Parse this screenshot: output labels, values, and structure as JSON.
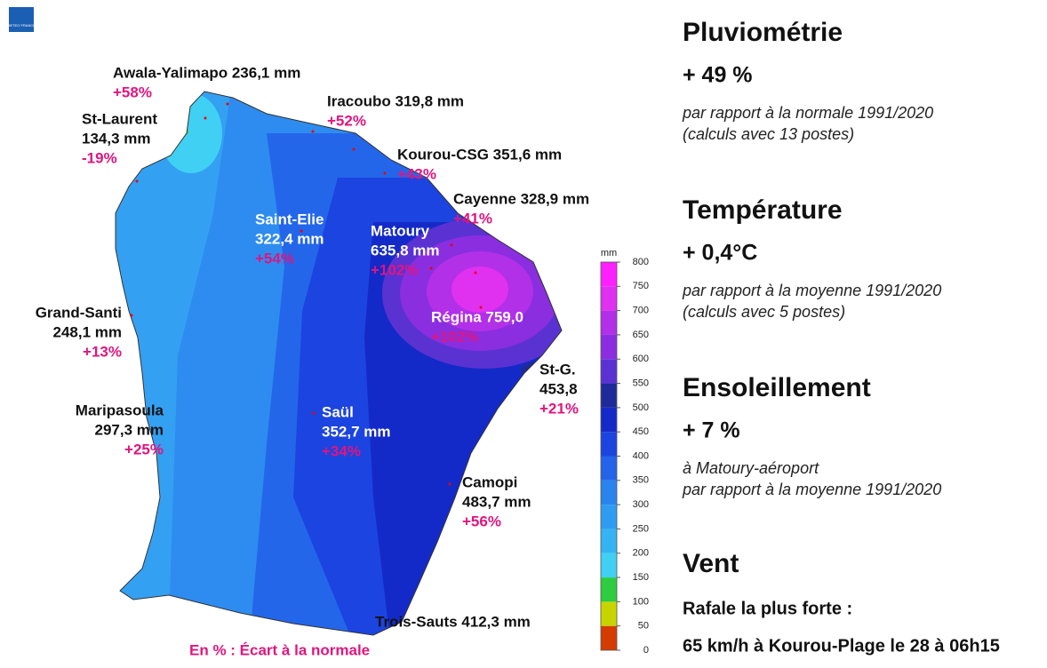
{
  "logo": "METEO FRANCE",
  "map": {
    "stations": [
      {
        "lines": [
          "Awala-Yalimapo 236,1 mm"
        ],
        "anomaly": "+58%"
      },
      {
        "lines": [
          "Iracoubo 319,8 mm"
        ],
        "anomaly": "+52%"
      },
      {
        "lines": [
          "St-Laurent",
          "134,3 mm"
        ],
        "anomaly": "-19%"
      },
      {
        "lines": [
          "Kourou-CSG 351,6 mm"
        ],
        "anomaly": "+43%"
      },
      {
        "lines": [
          "Cayenne 328,9 mm"
        ],
        "anomaly": "+41%"
      },
      {
        "lines": [
          "Saint-Elie",
          "322,4 mm"
        ],
        "anomaly": "+54%"
      },
      {
        "lines": [
          "Matoury",
          "635,8 mm"
        ],
        "anomaly": "+102%"
      },
      {
        "lines": [
          "Grand-Santi",
          "248,1 mm"
        ],
        "anomaly": "+13%"
      },
      {
        "lines": [
          "Régina 759,0"
        ],
        "anomaly": "+102%"
      },
      {
        "lines": [
          "St-G.",
          "453,8"
        ],
        "anomaly": "+21%"
      },
      {
        "lines": [
          "Maripasoula",
          "297,3 mm"
        ],
        "anomaly": "+25%"
      },
      {
        "lines": [
          "Saül",
          "352,7 mm"
        ],
        "anomaly": "+34%"
      },
      {
        "lines": [
          "Camopi",
          "483,7 mm"
        ],
        "anomaly": "+56%"
      },
      {
        "lines": [
          "Trois-Sauts 412,3 mm"
        ]
      }
    ],
    "note": "En % : Écart à la normale",
    "legend": {
      "unit": "mm",
      "ticks": [
        0,
        50,
        100,
        150,
        200,
        250,
        300,
        350,
        400,
        450,
        500,
        550,
        600,
        650,
        700,
        750,
        800
      ],
      "colors": [
        "#d43c00",
        "#c8d400",
        "#2ecc40",
        "#40d0f4",
        "#34b4f2",
        "#2e9cf0",
        "#2a84ee",
        "#2464e8",
        "#1c44e0",
        "#142ac8",
        "#1e2a9a",
        "#5a32d2",
        "#8a2ee0",
        "#b230e8",
        "#e030f0",
        "#ff20ff"
      ]
    }
  },
  "panel": [
    {
      "title": "Pluviométrie",
      "value": "+ 49 %",
      "notes": [
        "par rapport à la normale 1991/2020",
        "(calculs avec 13 postes)"
      ]
    },
    {
      "title": "Température",
      "value": "+ 0,4°C",
      "notes": [
        "par rapport à la moyenne 1991/2020",
        "(calculs avec 5 postes)"
      ]
    },
    {
      "title": "Ensoleillement",
      "value": "+ 7 %",
      "notes": [
        "à Matoury-aéroport",
        "par rapport à la moyenne 1991/2020"
      ]
    },
    {
      "title": "Vent",
      "lines": [
        "Rafale la plus forte :",
        "65 km/h à Kourou-Plage le 28 à 06h15"
      ]
    }
  ]
}
